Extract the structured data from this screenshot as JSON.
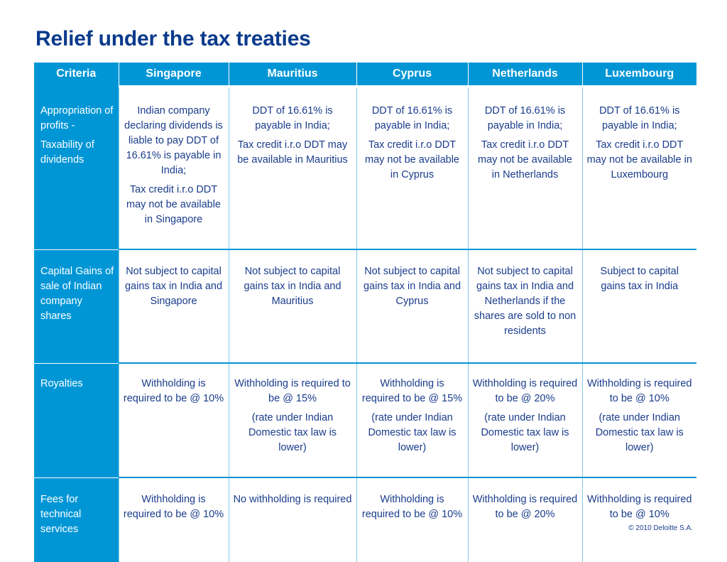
{
  "title": "Relief under the tax treaties",
  "headers": [
    "Criteria",
    "Singapore",
    "Mauritius",
    "Cyprus",
    "Netherlands",
    "Luxembourg"
  ],
  "rows": [
    {
      "criteria": [
        "Appropriation of profits -",
        "Taxability of dividends"
      ],
      "cells": [
        [
          "Indian company declaring dividends is liable to pay DDT of 16.61% is payable in India;",
          "Tax credit i.r.o DDT may not be available in Singapore"
        ],
        [
          "DDT of 16.61% is payable in India;",
          "Tax credit i.r.o DDT may be available in Mauritius"
        ],
        [
          "DDT of 16.61% is payable in India;",
          "Tax credit i.r.o DDT may not be available in Cyprus"
        ],
        [
          "DDT of 16.61% is payable in India;",
          "Tax credit i.r.o DDT may not be available in Netherlands"
        ],
        [
          "DDT of 16.61% is payable in India;",
          "Tax credit i.r.o DDT may  not be available in Luxembourg"
        ]
      ]
    },
    {
      "criteria": [
        "Capital Gains of sale of Indian company shares"
      ],
      "cells": [
        [
          "Not subject to capital gains tax in India and Singapore"
        ],
        [
          "Not subject to capital gains tax in India and Mauritius"
        ],
        [
          "Not subject to capital gains tax in India and Cyprus"
        ],
        [
          "Not subject to capital gains tax in India and Netherlands if the shares are sold to non residents"
        ],
        [
          "Subject to capital gains tax in India"
        ]
      ]
    },
    {
      "criteria": [
        "Royalties"
      ],
      "cells": [
        [
          "Withholding is required to be @ 10%"
        ],
        [
          "Withholding is required to be @ 15%",
          "(rate under Indian Domestic tax law is lower)"
        ],
        [
          "Withholding is required to be @ 15%",
          "(rate under Indian Domestic tax law is lower)"
        ],
        [
          "Withholding is required to be @ 20%",
          "(rate under Indian Domestic tax law is lower)"
        ],
        [
          "Withholding is required to be @ 10%",
          "(rate under Indian Domestic tax law is lower)"
        ]
      ]
    },
    {
      "criteria": [
        "Fees for technical services"
      ],
      "cells": [
        [
          "Withholding is required to be @ 10%"
        ],
        [
          "No withholding is required"
        ],
        [
          "Withholding is required to be @ 10%"
        ],
        [
          "Withholding is required to be @ 20%"
        ],
        [
          "Withholding is required to be @ 10%"
        ]
      ]
    }
  ],
  "footer": "© 2010 Deloitte S.A.",
  "colors": {
    "header_bg": "#0096d6",
    "title": "#0a3a8c",
    "body_text": "#1a3c8c"
  }
}
